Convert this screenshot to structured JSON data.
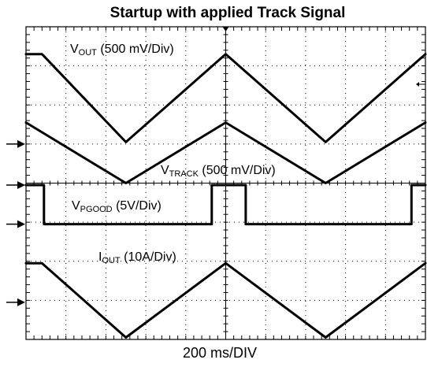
{
  "chart_data": {
    "type": "line",
    "title": "Startup with applied Track Signal",
    "xlabel": "200 ms/DIV",
    "ylabel": "",
    "grid": true,
    "x_divisions": 10,
    "y_divisions": 8,
    "series": [
      {
        "name": "V_OUT (500 mV/Div)",
        "name_parts": {
          "main": "V",
          "sub": "OUT",
          "rest": " (500 mV/Div)"
        },
        "x_div": [
          0,
          0.4,
          2.5,
          5.0,
          7.5,
          10
        ],
        "y_div": [
          7.3,
          7.3,
          5.05,
          7.3,
          5.05,
          7.3
        ]
      },
      {
        "name": "V_TRACK (500 mV/Div)",
        "name_parts": {
          "main": "V",
          "sub": "TRACK",
          "rest": " (500 mV/Div)"
        },
        "x_div": [
          0,
          2.5,
          5.0,
          7.5,
          10
        ],
        "y_div": [
          5.55,
          4.0,
          5.55,
          4.0,
          5.55
        ]
      },
      {
        "name": "V_PGOOD (5V/Div)",
        "name_parts": {
          "main": "V",
          "sub": "PGOOD",
          "rest": " (5V/Div)"
        },
        "x_div": [
          0,
          0.45,
          0.45,
          4.65,
          4.65,
          5.5,
          5.5,
          9.65,
          9.65,
          10
        ],
        "y_div": [
          3.95,
          3.95,
          2.95,
          2.95,
          3.95,
          3.95,
          2.95,
          2.95,
          3.95,
          3.95
        ]
      },
      {
        "name": "I_OUT (10A/Div)",
        "name_parts": {
          "main": "I",
          "sub": "OUT",
          "rest": " (10A/Div)"
        },
        "x_div": [
          0,
          0.4,
          2.5,
          5.0,
          7.5,
          10
        ],
        "y_div": [
          1.95,
          1.95,
          0.05,
          1.95,
          0.05,
          1.95
        ]
      }
    ],
    "ground_markers_y_div": [
      5.0,
      3.95,
      2.95,
      0.95
    ]
  }
}
